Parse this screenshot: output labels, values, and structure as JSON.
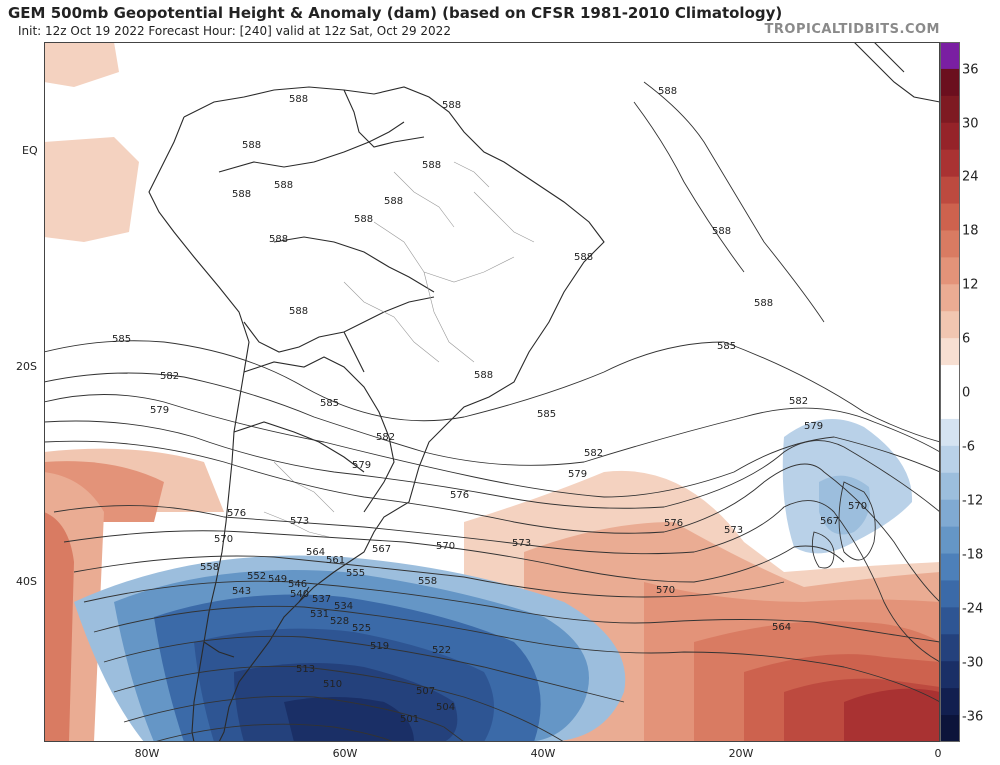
{
  "header": {
    "title": "GEM 500mb Geopotential Height & Anomaly (dam) (based on CFSR 1981-2010 Climatology)",
    "subtitle": "Init: 12z Oct 19 2022   Forecast Hour: [240]   valid at 12z Sat, Oct 29 2022",
    "site": "TROPICALTIDBITS.COM"
  },
  "axes": {
    "lat_labels": [
      "EQ",
      "20S",
      "40S"
    ],
    "lon_labels": [
      "80W",
      "60W",
      "40W",
      "20W",
      "0"
    ]
  },
  "colorbar": {
    "labels": [
      "36",
      "30",
      "24",
      "18",
      "12",
      "6",
      "0",
      "-6",
      "-12",
      "-18",
      "-24",
      "-30",
      "-36"
    ],
    "colors": [
      "#7a1fa2",
      "#6b0f1e",
      "#7e1a22",
      "#952329",
      "#a93232",
      "#bd4a3f",
      "#cd624e",
      "#d97b62",
      "#e39379",
      "#eaac93",
      "#f1c6b1",
      "#f7dfd2",
      "#ffffff",
      "#ffffff",
      "#d5e3f1",
      "#b9d1e8",
      "#9cbedd",
      "#80aad2",
      "#6596c6",
      "#4d80ba",
      "#3b6aa8",
      "#2e5593",
      "#24417c",
      "#1a2f66",
      "#121f4f",
      "#0c143a"
    ]
  },
  "contour_labels": [
    {
      "text": "588"
    },
    {
      "text": "588"
    },
    {
      "text": "588"
    },
    {
      "text": "588"
    },
    {
      "text": "588"
    },
    {
      "text": "588"
    },
    {
      "text": "588"
    },
    {
      "text": "588"
    },
    {
      "text": "588"
    },
    {
      "text": "588"
    },
    {
      "text": "588"
    },
    {
      "text": "588"
    },
    {
      "text": "588"
    },
    {
      "text": "588"
    },
    {
      "text": "588"
    },
    {
      "text": "585"
    },
    {
      "text": "585"
    },
    {
      "text": "585"
    },
    {
      "text": "585"
    },
    {
      "text": "582"
    },
    {
      "text": "582"
    },
    {
      "text": "582"
    },
    {
      "text": "582"
    },
    {
      "text": "579"
    },
    {
      "text": "579"
    },
    {
      "text": "579"
    },
    {
      "text": "579"
    },
    {
      "text": "576"
    },
    {
      "text": "576"
    },
    {
      "text": "576"
    },
    {
      "text": "573"
    },
    {
      "text": "573"
    },
    {
      "text": "573"
    },
    {
      "text": "570"
    },
    {
      "text": "570"
    },
    {
      "text": "570"
    },
    {
      "text": "570"
    },
    {
      "text": "567"
    },
    {
      "text": "567"
    },
    {
      "text": "564"
    },
    {
      "text": "564"
    },
    {
      "text": "561"
    },
    {
      "text": "558"
    },
    {
      "text": "558"
    },
    {
      "text": "555"
    },
    {
      "text": "552"
    },
    {
      "text": "549"
    },
    {
      "text": "546"
    },
    {
      "text": "543"
    },
    {
      "text": "540"
    },
    {
      "text": "537"
    },
    {
      "text": "534"
    },
    {
      "text": "531"
    },
    {
      "text": "528"
    },
    {
      "text": "525"
    },
    {
      "text": "522"
    },
    {
      "text": "519"
    },
    {
      "text": "513"
    },
    {
      "text": "510"
    },
    {
      "text": "507"
    },
    {
      "text": "504"
    },
    {
      "text": "501"
    }
  ]
}
